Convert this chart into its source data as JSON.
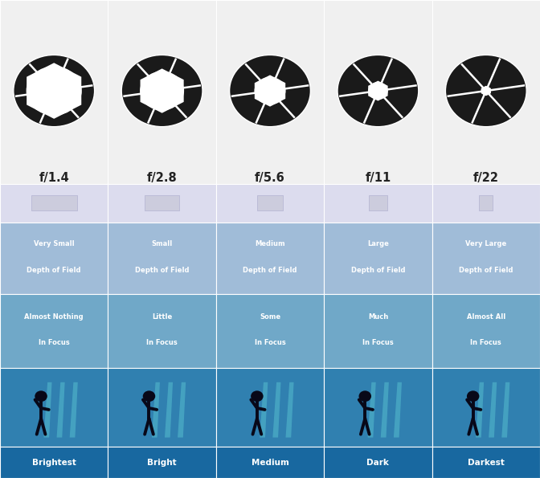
{
  "apertures": [
    "f/1.4",
    "f/2.8",
    "f/5.6",
    "f/11",
    "f/22"
  ],
  "aperture_openings": [
    0.78,
    0.62,
    0.44,
    0.28,
    0.14
  ],
  "dof_labels_line1": [
    "Very Small",
    "Small",
    "Medium",
    "Large",
    "Very Large"
  ],
  "dof_labels_line2": [
    "Depth of Field",
    "Depth of Field",
    "Depth of Field",
    "Depth of Field",
    "Depth of Field"
  ],
  "focus_labels_line1": [
    "Almost Nothing",
    "Little",
    "Some",
    "Much",
    "Almost All"
  ],
  "focus_labels_line2": [
    "In Focus",
    "In Focus",
    "In Focus",
    "In Focus",
    "In Focus"
  ],
  "brightness_labels": [
    "Brightest",
    "Bright",
    "Medium",
    "Dark",
    "Darkest"
  ],
  "bg_top": "#f0f0f0",
  "bg_lavender": "#dcdcee",
  "bg_dof": "#a0bcd8",
  "bg_focus": "#70a8c8",
  "bg_person": "#3080b0",
  "bg_bright": "#1868a0",
  "icon_color": "#1a1a1a",
  "text_white": "#ffffff",
  "text_dark": "#222222",
  "person_color": "#0a0a20",
  "scene_color": "#50a0c0",
  "n_cols": 5,
  "row_tops": [
    1.0,
    0.615,
    0.535,
    0.385,
    0.23,
    0.065
  ],
  "row_bottoms": [
    0.615,
    0.535,
    0.385,
    0.23,
    0.065,
    0.0
  ]
}
